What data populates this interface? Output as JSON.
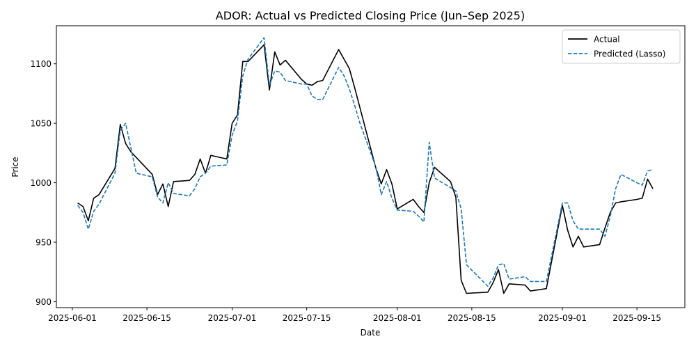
{
  "chart_data": {
    "type": "line",
    "title": "ADOR: Actual vs Predicted Closing Price (Jun–Sep 2025)",
    "xlabel": "Date",
    "ylabel": "Price",
    "xlim": [
      "2025-05-29",
      "2025-09-24"
    ],
    "ylim": [
      895,
      1132
    ],
    "x_ticks": [
      "2025-06-01",
      "2025-06-15",
      "2025-07-01",
      "2025-07-15",
      "2025-08-01",
      "2025-08-15",
      "2025-09-01",
      "2025-09-15"
    ],
    "y_ticks": [
      900,
      950,
      1000,
      1050,
      1100
    ],
    "grid": false,
    "legend_position": "top-right",
    "series": [
      {
        "name": "Actual",
        "color": "#000000",
        "style": "solid",
        "x": [
          "2025-06-02",
          "2025-06-03",
          "2025-06-04",
          "2025-06-05",
          "2025-06-06",
          "2025-06-09",
          "2025-06-10",
          "2025-06-11",
          "2025-06-12",
          "2025-06-16",
          "2025-06-17",
          "2025-06-18",
          "2025-06-19",
          "2025-06-20",
          "2025-06-23",
          "2025-06-24",
          "2025-06-25",
          "2025-06-26",
          "2025-06-27",
          "2025-06-30",
          "2025-07-01",
          "2025-07-02",
          "2025-07-03",
          "2025-07-04",
          "2025-07-07",
          "2025-07-08",
          "2025-07-09",
          "2025-07-10",
          "2025-07-11",
          "2025-07-14",
          "2025-07-15",
          "2025-07-16",
          "2025-07-17",
          "2025-07-18",
          "2025-07-21",
          "2025-07-22",
          "2025-07-23",
          "2025-07-24",
          "2025-07-28",
          "2025-07-29",
          "2025-07-30",
          "2025-07-31",
          "2025-08-01",
          "2025-08-04",
          "2025-08-05",
          "2025-08-06",
          "2025-08-07",
          "2025-08-08",
          "2025-08-11",
          "2025-08-12",
          "2025-08-13",
          "2025-08-14",
          "2025-08-18",
          "2025-08-19",
          "2025-08-20",
          "2025-08-21",
          "2025-08-22",
          "2025-08-25",
          "2025-08-26",
          "2025-08-29",
          "2025-09-01",
          "2025-09-02",
          "2025-09-03",
          "2025-09-04",
          "2025-09-05",
          "2025-09-08",
          "2025-09-09",
          "2025-09-10",
          "2025-09-11",
          "2025-09-12",
          "2025-09-15",
          "2025-09-16",
          "2025-09-17",
          "2025-09-18"
        ],
        "values": [
          983,
          980,
          968,
          987,
          990,
          1012,
          1049,
          1033,
          1026,
          1007,
          990,
          999,
          980,
          1001,
          1002,
          1007,
          1020,
          1008,
          1023,
          1020,
          1050,
          1057,
          1102,
          1102,
          1116,
          1078,
          1110,
          1099,
          1103,
          1087,
          1083,
          1082,
          1085,
          1086,
          1112,
          1104,
          1096,
          1080,
          1012,
          999,
          1011,
          999,
          978,
          986,
          980,
          975,
          1000,
          1013,
          1001,
          988,
          918,
          907,
          908,
          916,
          927,
          907,
          915,
          914,
          909,
          911,
          981,
          960,
          946,
          955,
          946,
          948,
          962,
          975,
          983,
          984,
          986,
          987,
          1003,
          995
        ]
      },
      {
        "name": "Predicted (Lasso)",
        "color": "#1f77b4",
        "style": "dashed",
        "x": [
          "2025-06-02",
          "2025-06-03",
          "2025-06-04",
          "2025-06-05",
          "2025-06-06",
          "2025-06-09",
          "2025-06-10",
          "2025-06-11",
          "2025-06-12",
          "2025-06-13",
          "2025-06-16",
          "2025-06-17",
          "2025-06-18",
          "2025-06-19",
          "2025-06-20",
          "2025-06-23",
          "2025-06-24",
          "2025-06-25",
          "2025-06-26",
          "2025-06-27",
          "2025-06-30",
          "2025-07-01",
          "2025-07-02",
          "2025-07-03",
          "2025-07-04",
          "2025-07-07",
          "2025-07-08",
          "2025-07-09",
          "2025-07-10",
          "2025-07-11",
          "2025-07-14",
          "2025-07-15",
          "2025-07-16",
          "2025-07-17",
          "2025-07-18",
          "2025-07-21",
          "2025-07-22",
          "2025-07-23",
          "2025-07-24",
          "2025-07-25",
          "2025-07-28",
          "2025-07-29",
          "2025-07-30",
          "2025-07-31",
          "2025-08-01",
          "2025-08-04",
          "2025-08-05",
          "2025-08-06",
          "2025-08-07",
          "2025-08-08",
          "2025-08-11",
          "2025-08-12",
          "2025-08-13",
          "2025-08-14",
          "2025-08-18",
          "2025-08-19",
          "2025-08-20",
          "2025-08-21",
          "2025-08-22",
          "2025-08-25",
          "2025-08-26",
          "2025-08-29",
          "2025-09-01",
          "2025-09-02",
          "2025-09-03",
          "2025-09-04",
          "2025-09-05",
          "2025-09-08",
          "2025-09-09",
          "2025-09-10",
          "2025-09-11",
          "2025-09-12",
          "2025-09-15",
          "2025-09-16",
          "2025-09-17",
          "2025-09-18"
        ],
        "values": [
          981,
          975,
          961,
          976,
          982,
          1008,
          1044,
          1050,
          1029,
          1008,
          1005,
          988,
          983,
          1000,
          991,
          989,
          995,
          1005,
          1008,
          1014,
          1015,
          1040,
          1052,
          1090,
          1104,
          1122,
          1082,
          1094,
          1093,
          1086,
          1083,
          1083,
          1073,
          1070,
          1070,
          1097,
          1090,
          1079,
          1065,
          1050,
          1013,
          990,
          1001,
          987,
          977,
          976,
          972,
          967,
          1034,
          1004,
          996,
          993,
          978,
          931,
          913,
          920,
          931,
          932,
          919,
          921,
          917,
          917,
          983,
          983,
          968,
          961,
          961,
          961,
          955,
          972,
          995,
          1007,
          1000,
          998,
          1010,
          1011
        ]
      }
    ]
  }
}
